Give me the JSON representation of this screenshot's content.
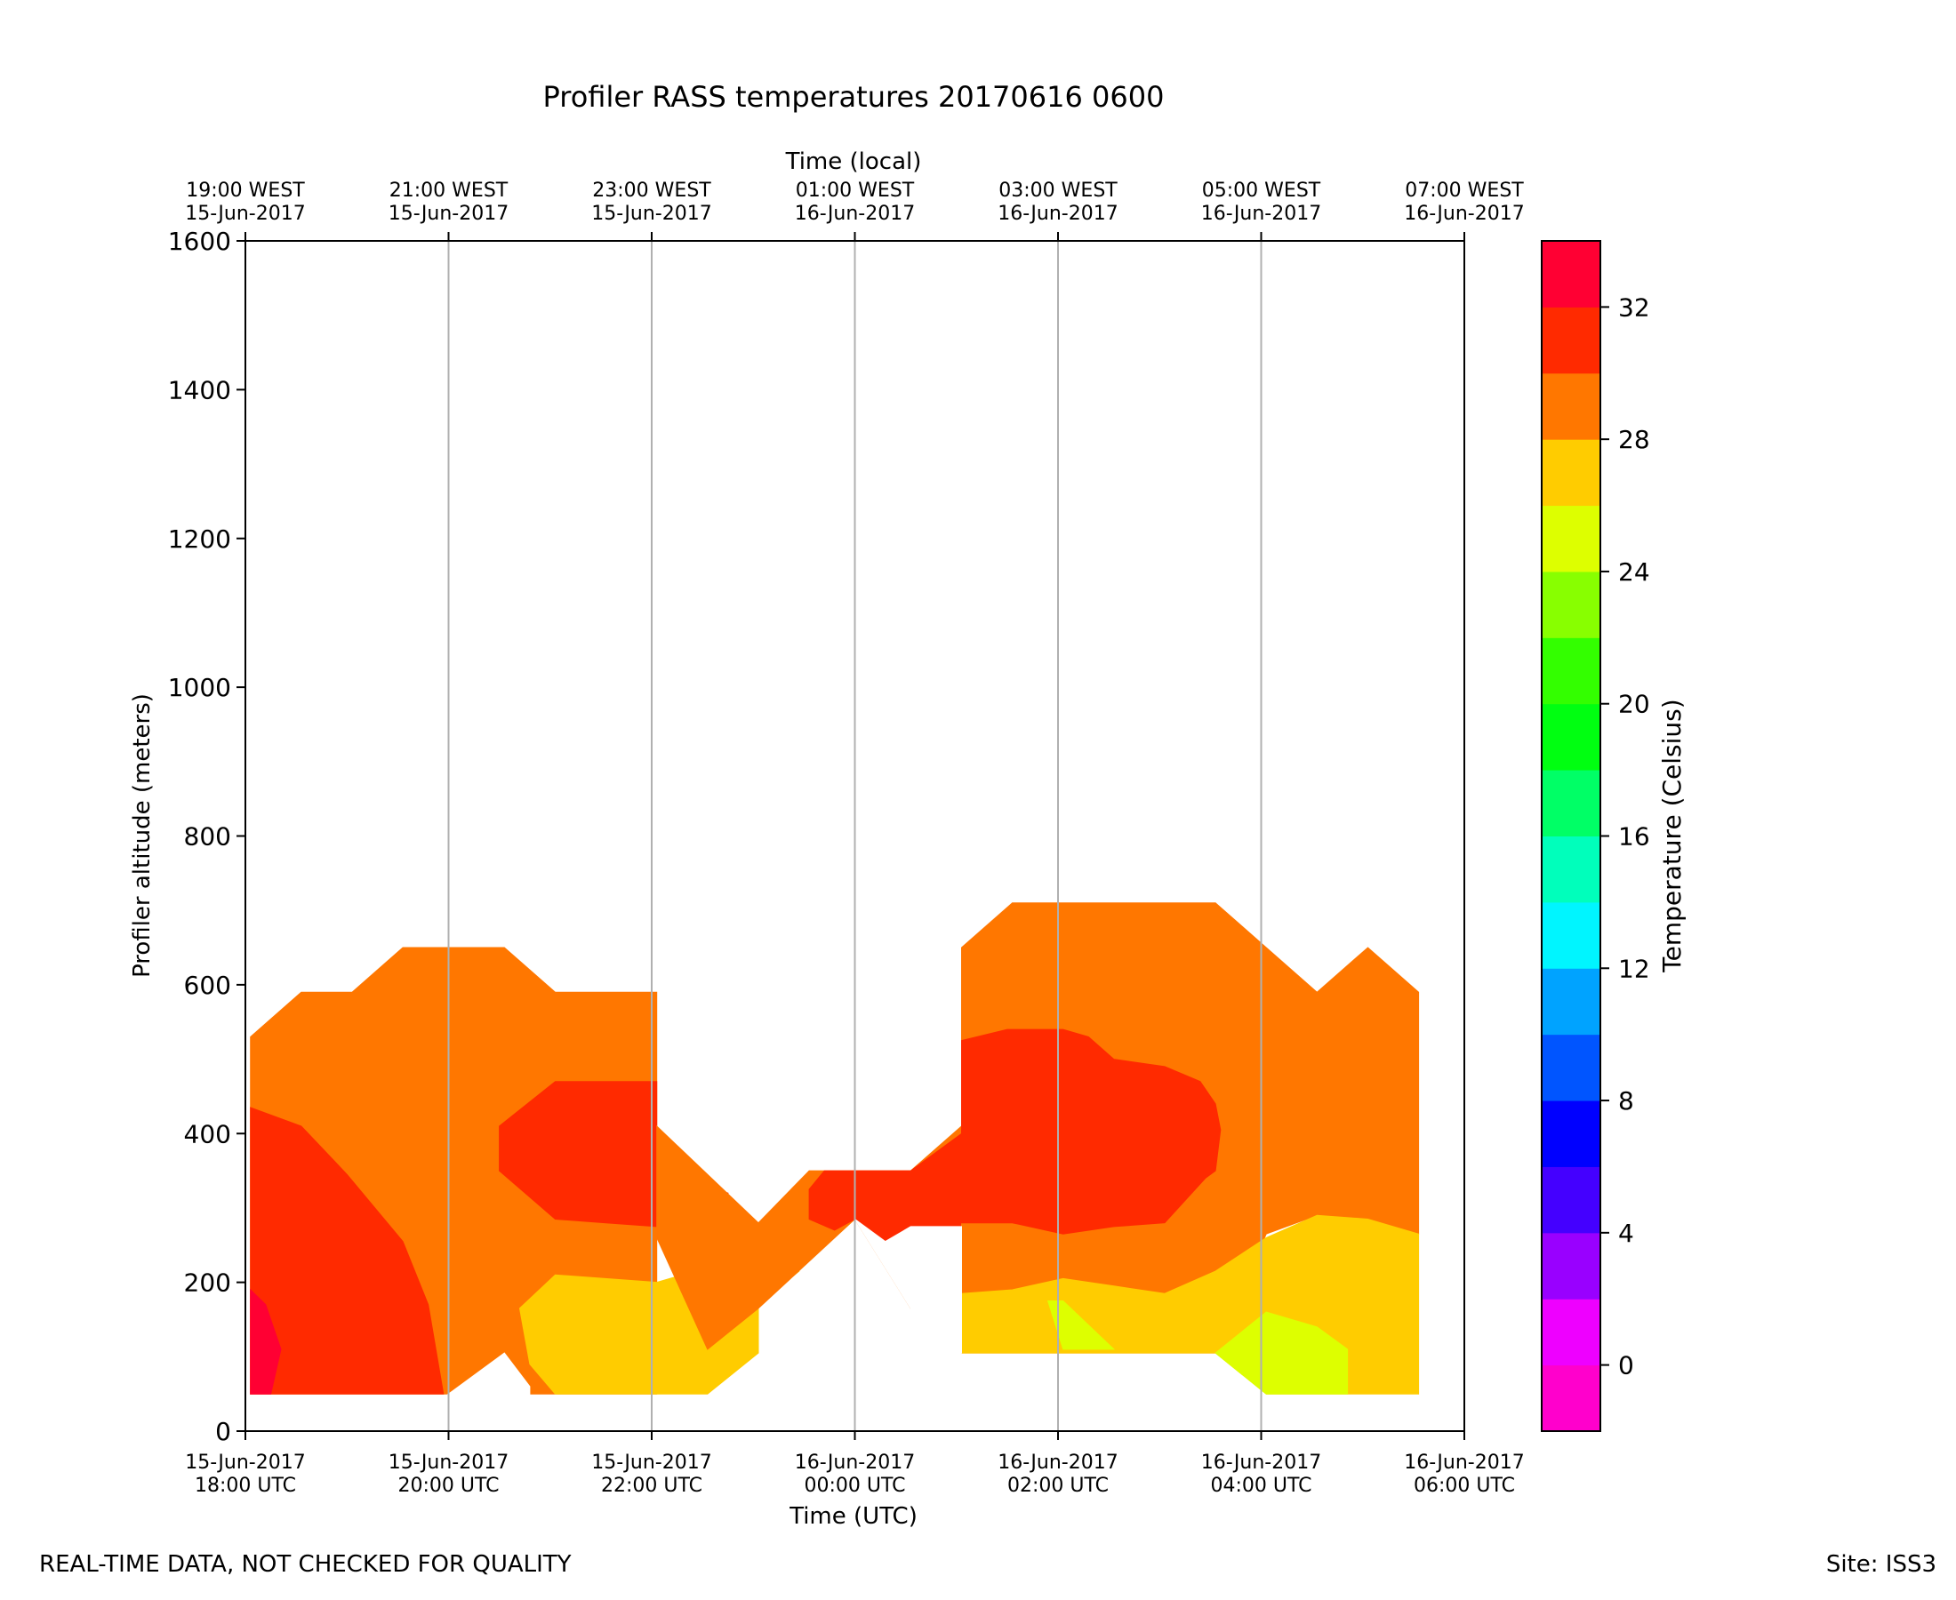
{
  "chart_data": {
    "type": "contourf",
    "title": "Profiler RASS temperatures 20170616 0600",
    "xlabel": "Time (UTC)",
    "xlabel_top": "Time (local)",
    "ylabel": "Profiler altitude (meters)",
    "colorbar_label": "Temperature (Celsius)",
    "x_range_hours_utc": [
      18,
      30
    ],
    "ylim": [
      0,
      1600
    ],
    "y_ticks": [
      0,
      200,
      400,
      600,
      800,
      1000,
      1200,
      1400,
      1600
    ],
    "bottom_ticks": [
      {
        "hour": 18,
        "line1": "15-Jun-2017",
        "line2": "18:00 UTC"
      },
      {
        "hour": 20,
        "line1": "15-Jun-2017",
        "line2": "20:00 UTC"
      },
      {
        "hour": 22,
        "line1": "15-Jun-2017",
        "line2": "22:00 UTC"
      },
      {
        "hour": 24,
        "line1": "16-Jun-2017",
        "line2": "00:00 UTC"
      },
      {
        "hour": 26,
        "line1": "16-Jun-2017",
        "line2": "02:00 UTC"
      },
      {
        "hour": 28,
        "line1": "16-Jun-2017",
        "line2": "04:00 UTC"
      },
      {
        "hour": 30,
        "line1": "16-Jun-2017",
        "line2": "06:00 UTC"
      }
    ],
    "top_ticks": [
      {
        "hour": 18,
        "line1": "19:00 WEST",
        "line2": "15-Jun-2017"
      },
      {
        "hour": 20,
        "line1": "21:00 WEST",
        "line2": "15-Jun-2017"
      },
      {
        "hour": 22,
        "line1": "23:00 WEST",
        "line2": "15-Jun-2017"
      },
      {
        "hour": 24,
        "line1": "01:00 WEST",
        "line2": "16-Jun-2017"
      },
      {
        "hour": 26,
        "line1": "03:00 WEST",
        "line2": "16-Jun-2017"
      },
      {
        "hour": 28,
        "line1": "05:00 WEST",
        "line2": "16-Jun-2017"
      },
      {
        "hour": 30,
        "line1": "07:00 WEST",
        "line2": "16-Jun-2017"
      }
    ],
    "gridlines_hours": [
      20,
      22,
      24,
      26,
      28
    ],
    "colorbar": {
      "range": [
        -2,
        34
      ],
      "levels": [
        {
          "from": -2,
          "to": 0,
          "color": "#ff00cc"
        },
        {
          "from": 0,
          "to": 2,
          "color": "#ee00ff"
        },
        {
          "from": 2,
          "to": 4,
          "color": "#9900ff"
        },
        {
          "from": 4,
          "to": 6,
          "color": "#4400ff"
        },
        {
          "from": 6,
          "to": 8,
          "color": "#0000ff"
        },
        {
          "from": 8,
          "to": 10,
          "color": "#0055ff"
        },
        {
          "from": 10,
          "to": 12,
          "color": "#00a3ff"
        },
        {
          "from": 12,
          "to": 14,
          "color": "#00f5ff"
        },
        {
          "from": 14,
          "to": 16,
          "color": "#00ffbb"
        },
        {
          "from": 16,
          "to": 18,
          "color": "#00ff66"
        },
        {
          "from": 18,
          "to": 20,
          "color": "#00ff11"
        },
        {
          "from": 20,
          "to": 22,
          "color": "#33ff00"
        },
        {
          "from": 22,
          "to": 24,
          "color": "#88ff00"
        },
        {
          "from": 24,
          "to": 26,
          "color": "#ddff00"
        },
        {
          "from": 26,
          "to": 28,
          "color": "#ffcc00"
        },
        {
          "from": 28,
          "to": 30,
          "color": "#ff7700"
        },
        {
          "from": 30,
          "to": 32,
          "color": "#ff2a00"
        },
        {
          "from": 32,
          "to": 34,
          "color": "#ff0033"
        }
      ],
      "ticks": [
        0,
        4,
        8,
        12,
        16,
        20,
        24,
        28,
        32
      ]
    },
    "regions": [
      {
        "name": "left-block-28-30C",
        "level": 28,
        "points": [
          [
            18.05,
            530
          ],
          [
            18.55,
            590
          ],
          [
            19.05,
            590
          ],
          [
            19.55,
            650
          ],
          [
            20.55,
            650
          ],
          [
            21.05,
            590
          ],
          [
            22.05,
            590
          ],
          [
            22.05,
            50
          ],
          [
            18.05,
            50
          ]
        ]
      },
      {
        "name": "left-block-30-32C",
        "level": 30,
        "points": [
          [
            18.05,
            435
          ],
          [
            18.55,
            410
          ],
          [
            19.0,
            345
          ],
          [
            19.55,
            255
          ],
          [
            19.8,
            170
          ],
          [
            19.95,
            50
          ],
          [
            18.05,
            50
          ]
        ]
      },
      {
        "name": "left-block-32-34C",
        "level": 32,
        "points": [
          [
            18.05,
            190
          ],
          [
            18.2,
            170
          ],
          [
            18.35,
            110
          ],
          [
            18.25,
            50
          ],
          [
            18.05,
            50
          ]
        ]
      },
      {
        "name": "left-block-30-32C-core",
        "level": 30,
        "points": [
          [
            20.5,
            410
          ],
          [
            21.05,
            470
          ],
          [
            22.05,
            470
          ],
          [
            22.05,
            400
          ],
          [
            22.55,
            330
          ],
          [
            22.75,
            320
          ],
          [
            22.4,
            295
          ],
          [
            22.05,
            275
          ],
          [
            21.55,
            280
          ],
          [
            21.05,
            285
          ],
          [
            20.5,
            350
          ]
        ]
      },
      {
        "name": "left-block-26-28C",
        "level": 26,
        "points": [
          [
            20.7,
            165
          ],
          [
            21.05,
            210
          ],
          [
            22.05,
            200
          ],
          [
            22.55,
            220
          ],
          [
            23.05,
            255
          ],
          [
            23.45,
            215
          ],
          [
            23.05,
            170
          ],
          [
            23.05,
            105
          ],
          [
            22.55,
            50
          ],
          [
            21.05,
            50
          ],
          [
            20.8,
            90
          ]
        ]
      },
      {
        "name": "left-block-notch",
        "level": null,
        "points": [
          [
            19.95,
            45
          ],
          [
            20.55,
            105
          ],
          [
            20.8,
            60
          ],
          [
            20.8,
            45
          ]
        ]
      },
      {
        "name": "middle-28-30C",
        "level": 28,
        "points": [
          [
            22.05,
            410
          ],
          [
            23.05,
            280
          ],
          [
            23.55,
            350
          ],
          [
            24.55,
            350
          ],
          [
            25.05,
            410
          ],
          [
            25.05,
            220
          ],
          [
            24.55,
            165
          ],
          [
            24.0,
            285
          ],
          [
            23.05,
            165
          ],
          [
            22.55,
            110
          ],
          [
            22.05,
            260
          ]
        ]
      },
      {
        "name": "middle-30-32C",
        "level": 30,
        "points": [
          [
            23.55,
            325
          ],
          [
            23.7,
            350
          ],
          [
            24.55,
            350
          ],
          [
            25.05,
            400
          ],
          [
            25.05,
            275
          ],
          [
            24.55,
            270
          ],
          [
            24.3,
            255
          ],
          [
            24.0,
            285
          ],
          [
            23.8,
            270
          ],
          [
            23.55,
            285
          ]
        ]
      },
      {
        "name": "right-block-28-30C",
        "level": 28,
        "points": [
          [
            25.05,
            650
          ],
          [
            25.55,
            710
          ],
          [
            27.55,
            710
          ],
          [
            28.05,
            650
          ],
          [
            28.55,
            590
          ],
          [
            29.05,
            650
          ],
          [
            29.55,
            590
          ],
          [
            29.55,
            265
          ],
          [
            29.0,
            285
          ],
          [
            28.55,
            290
          ],
          [
            28.05,
            265
          ],
          [
            27.55,
            105
          ],
          [
            25.05,
            105
          ]
        ]
      },
      {
        "name": "right-block-30-32C",
        "level": 30,
        "points": [
          [
            25.05,
            525
          ],
          [
            25.5,
            540
          ],
          [
            26.05,
            540
          ],
          [
            26.3,
            530
          ],
          [
            26.55,
            500
          ],
          [
            27.05,
            490
          ],
          [
            27.4,
            470
          ],
          [
            27.55,
            440
          ],
          [
            27.6,
            405
          ],
          [
            27.55,
            350
          ],
          [
            27.45,
            340
          ],
          [
            27.05,
            280
          ],
          [
            26.55,
            275
          ],
          [
            26.05,
            265
          ],
          [
            25.55,
            280
          ],
          [
            25.05,
            280
          ]
        ]
      },
      {
        "name": "right-block-26-28C",
        "level": 26,
        "points": [
          [
            25.05,
            185
          ],
          [
            25.55,
            190
          ],
          [
            26.05,
            205
          ],
          [
            26.55,
            195
          ],
          [
            27.05,
            185
          ],
          [
            27.55,
            215
          ],
          [
            28.05,
            260
          ],
          [
            28.55,
            290
          ],
          [
            29.05,
            285
          ],
          [
            29.55,
            265
          ],
          [
            29.55,
            50
          ],
          [
            28.05,
            50
          ],
          [
            27.55,
            105
          ],
          [
            25.05,
            105
          ]
        ]
      },
      {
        "name": "right-block-24-26C-a",
        "level": 24,
        "points": [
          [
            25.9,
            175
          ],
          [
            26.05,
            175
          ],
          [
            26.55,
            110
          ],
          [
            26.05,
            110
          ]
        ]
      },
      {
        "name": "right-block-24-26C-b",
        "level": 24,
        "points": [
          [
            27.55,
            105
          ],
          [
            28.05,
            160
          ],
          [
            28.55,
            140
          ],
          [
            28.85,
            110
          ],
          [
            28.85,
            50
          ],
          [
            28.05,
            50
          ]
        ]
      },
      {
        "name": "right-block-mask",
        "level": null,
        "points": [
          [
            24.55,
            165
          ],
          [
            24.0,
            285
          ],
          [
            24.3,
            255
          ],
          [
            24.55,
            275
          ],
          [
            25.05,
            275
          ],
          [
            25.05,
            105
          ],
          [
            24.8,
            105
          ]
        ]
      }
    ]
  },
  "footer": {
    "left": "REAL-TIME DATA, NOT CHECKED FOR QUALITY",
    "right": "Site: ISS3"
  }
}
